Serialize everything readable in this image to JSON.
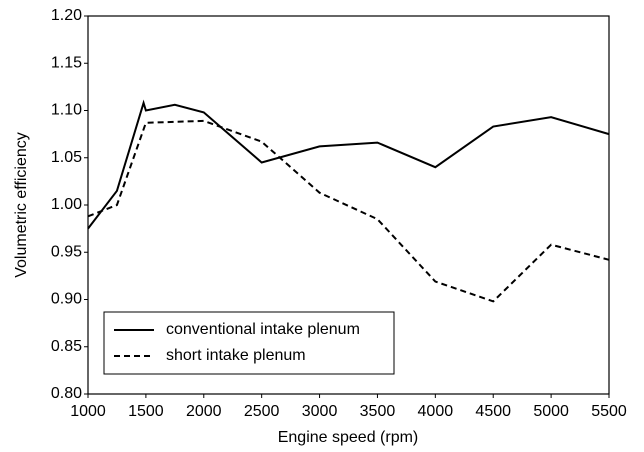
{
  "chart_data": {
    "type": "line",
    "xlabel": "Engine speed (rpm)",
    "ylabel": "Volumetric efficiency",
    "xlim": [
      1000,
      5500
    ],
    "xticks": [
      1000,
      1500,
      2000,
      2500,
      3000,
      3500,
      4000,
      4500,
      5000,
      5500
    ],
    "ylim": [
      0.8,
      1.2
    ],
    "yticks": [
      {
        "value": 0.8,
        "label": "0.80"
      },
      0.85,
      {
        "value": 0.9,
        "label": "0.90"
      },
      0.95,
      {
        "value": 1.0,
        "label": "1.00"
      },
      1.05,
      {
        "value": 1.1,
        "label": "1.10"
      },
      1.15,
      {
        "value": 1.2,
        "label": "1.20"
      }
    ],
    "legend": "lower left",
    "series": [
      {
        "name": "conventional intake plenum",
        "color": "#000000",
        "linestyle": "solid",
        "x": [
          1000,
          1250,
          1480,
          1500,
          1750,
          2000,
          2500,
          3000,
          3500,
          4000,
          4500,
          5000,
          5500
        ],
        "values": [
          0.975,
          1.015,
          1.108,
          1.1,
          1.106,
          1.098,
          1.045,
          1.062,
          1.066,
          1.04,
          1.083,
          1.093,
          1.075
        ]
      },
      {
        "name": "short intake plenum",
        "color": "#000000",
        "linestyle": "dashed",
        "x": [
          1000,
          1250,
          1500,
          2000,
          2500,
          3000,
          3500,
          4000,
          4500,
          5000,
          5500
        ],
        "values": [
          0.988,
          1.0,
          1.087,
          1.089,
          1.067,
          1.013,
          0.985,
          0.919,
          0.898,
          0.958,
          0.942
        ]
      }
    ]
  }
}
